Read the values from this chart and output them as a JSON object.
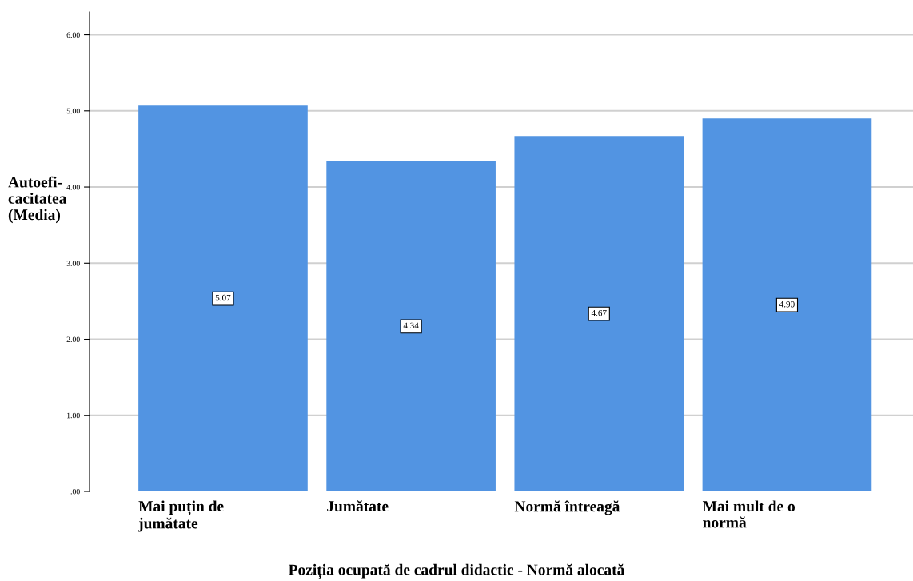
{
  "chart_data": {
    "type": "bar",
    "xlabel": "Poziția ocupată de cadrul didactic - Normă alocată",
    "ylabel": "Autoefi-\ncacitatea\n(Media)",
    "categories": [
      "Mai puțin de\njumătate",
      "Jumătate",
      "Normă întreagă",
      "Mai mult de o\nnormă"
    ],
    "values": [
      5.07,
      4.34,
      4.67,
      4.9
    ],
    "value_labels": [
      "5.07",
      "4.34",
      "4.67",
      "4.90"
    ],
    "color": "#5294e2",
    "ylim": [
      0,
      6.3
    ],
    "yticks": [
      {
        "value": 0,
        "label": ".00"
      },
      {
        "value": 1,
        "label": "1.00"
      },
      {
        "value": 2,
        "label": "2.00"
      },
      {
        "value": 3,
        "label": "3.00"
      },
      {
        "value": 4,
        "label": "4.00"
      },
      {
        "value": 5,
        "label": "5.00"
      },
      {
        "value": 6,
        "label": "6.00"
      }
    ],
    "grid": "y",
    "legend": false
  }
}
